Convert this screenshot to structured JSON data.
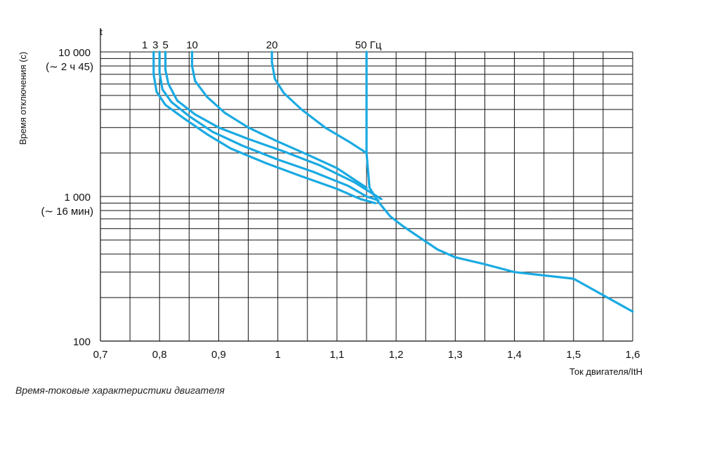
{
  "chart_data": {
    "type": "line",
    "title": "",
    "xlabel": "Ток двигателя/ItH",
    "ylabel": "Время отключения (с)",
    "y_axis_letter": "t",
    "x_scale": "linear",
    "y_scale": "log",
    "xlim": [
      0.7,
      1.6
    ],
    "ylim": [
      100,
      10000
    ],
    "x_ticks": [
      "0,7",
      "0,8",
      "0,9",
      "1",
      "1,1",
      "1,2",
      "1,3",
      "1,4",
      "1,5",
      "1,6"
    ],
    "x_tick_values": [
      0.7,
      0.8,
      0.9,
      1.0,
      1.1,
      1.2,
      1.3,
      1.4,
      1.5,
      1.6
    ],
    "y_ticks": [
      {
        "value": 10000,
        "label": "10 000",
        "sublabel": "(∼ 2 ч 45)"
      },
      {
        "value": 1000,
        "label": "1 000",
        "sublabel": "(∼ 16 мин)"
      },
      {
        "value": 100,
        "label": "100",
        "sublabel": ""
      }
    ],
    "grid": true,
    "line_color": "#1aaae2",
    "series": [
      {
        "name": "1",
        "points": [
          [
            0.79,
            10000
          ],
          [
            0.79,
            7000
          ],
          [
            0.795,
            5300
          ],
          [
            0.81,
            4300
          ],
          [
            0.84,
            3500
          ],
          [
            0.88,
            2700
          ],
          [
            0.92,
            2150
          ],
          [
            0.98,
            1700
          ],
          [
            1.04,
            1380
          ],
          [
            1.1,
            1130
          ],
          [
            1.14,
            960
          ],
          [
            1.165,
            900
          ]
        ]
      },
      {
        "name": "3",
        "points": [
          [
            0.8,
            10000
          ],
          [
            0.8,
            7200
          ],
          [
            0.805,
            5500
          ],
          [
            0.82,
            4500
          ],
          [
            0.85,
            3600
          ],
          [
            0.89,
            2800
          ],
          [
            0.94,
            2250
          ],
          [
            1.0,
            1800
          ],
          [
            1.06,
            1480
          ],
          [
            1.12,
            1180
          ],
          [
            1.15,
            1000
          ],
          [
            1.17,
            940
          ]
        ]
      },
      {
        "name": "5",
        "points": [
          [
            0.81,
            10000
          ],
          [
            0.81,
            7500
          ],
          [
            0.815,
            6000
          ],
          [
            0.83,
            4600
          ],
          [
            0.86,
            3700
          ],
          [
            0.9,
            3000
          ],
          [
            0.95,
            2500
          ],
          [
            1.01,
            2050
          ],
          [
            1.07,
            1650
          ],
          [
            1.13,
            1250
          ],
          [
            1.155,
            1080
          ],
          [
            1.175,
            960
          ]
        ]
      },
      {
        "name": "10",
        "points": [
          [
            0.855,
            10000
          ],
          [
            0.855,
            8000
          ],
          [
            0.86,
            6300
          ],
          [
            0.88,
            4900
          ],
          [
            0.91,
            3800
          ],
          [
            0.95,
            3000
          ],
          [
            1.0,
            2400
          ],
          [
            1.05,
            1950
          ],
          [
            1.1,
            1570
          ],
          [
            1.15,
            1150
          ]
        ]
      },
      {
        "name": "20",
        "points": [
          [
            0.99,
            10000
          ],
          [
            0.99,
            8500
          ],
          [
            0.995,
            6500
          ],
          [
            1.01,
            5200
          ],
          [
            1.04,
            4000
          ],
          [
            1.08,
            3000
          ],
          [
            1.12,
            2400
          ],
          [
            1.15,
            2000
          ]
        ]
      },
      {
        "name": "50 Гц",
        "points": [
          [
            1.15,
            10000
          ],
          [
            1.15,
            2000
          ],
          [
            1.155,
            1150
          ],
          [
            1.17,
            920
          ],
          [
            1.19,
            730
          ],
          [
            1.21,
            630
          ],
          [
            1.24,
            520
          ],
          [
            1.27,
            430
          ],
          [
            1.3,
            380
          ],
          [
            1.35,
            340
          ],
          [
            1.4,
            300
          ],
          [
            1.5,
            270
          ],
          [
            1.6,
            160
          ]
        ]
      }
    ],
    "line_labels": [
      {
        "text": "1",
        "x": 0.775
      },
      {
        "text": "3",
        "x": 0.793
      },
      {
        "text": "5",
        "x": 0.81
      },
      {
        "text": "10",
        "x": 0.855
      },
      {
        "text": "20",
        "x": 0.99
      },
      {
        "text": "50 Гц",
        "x": 1.153
      }
    ]
  },
  "caption": "Время-токовые характеристики двигателя"
}
